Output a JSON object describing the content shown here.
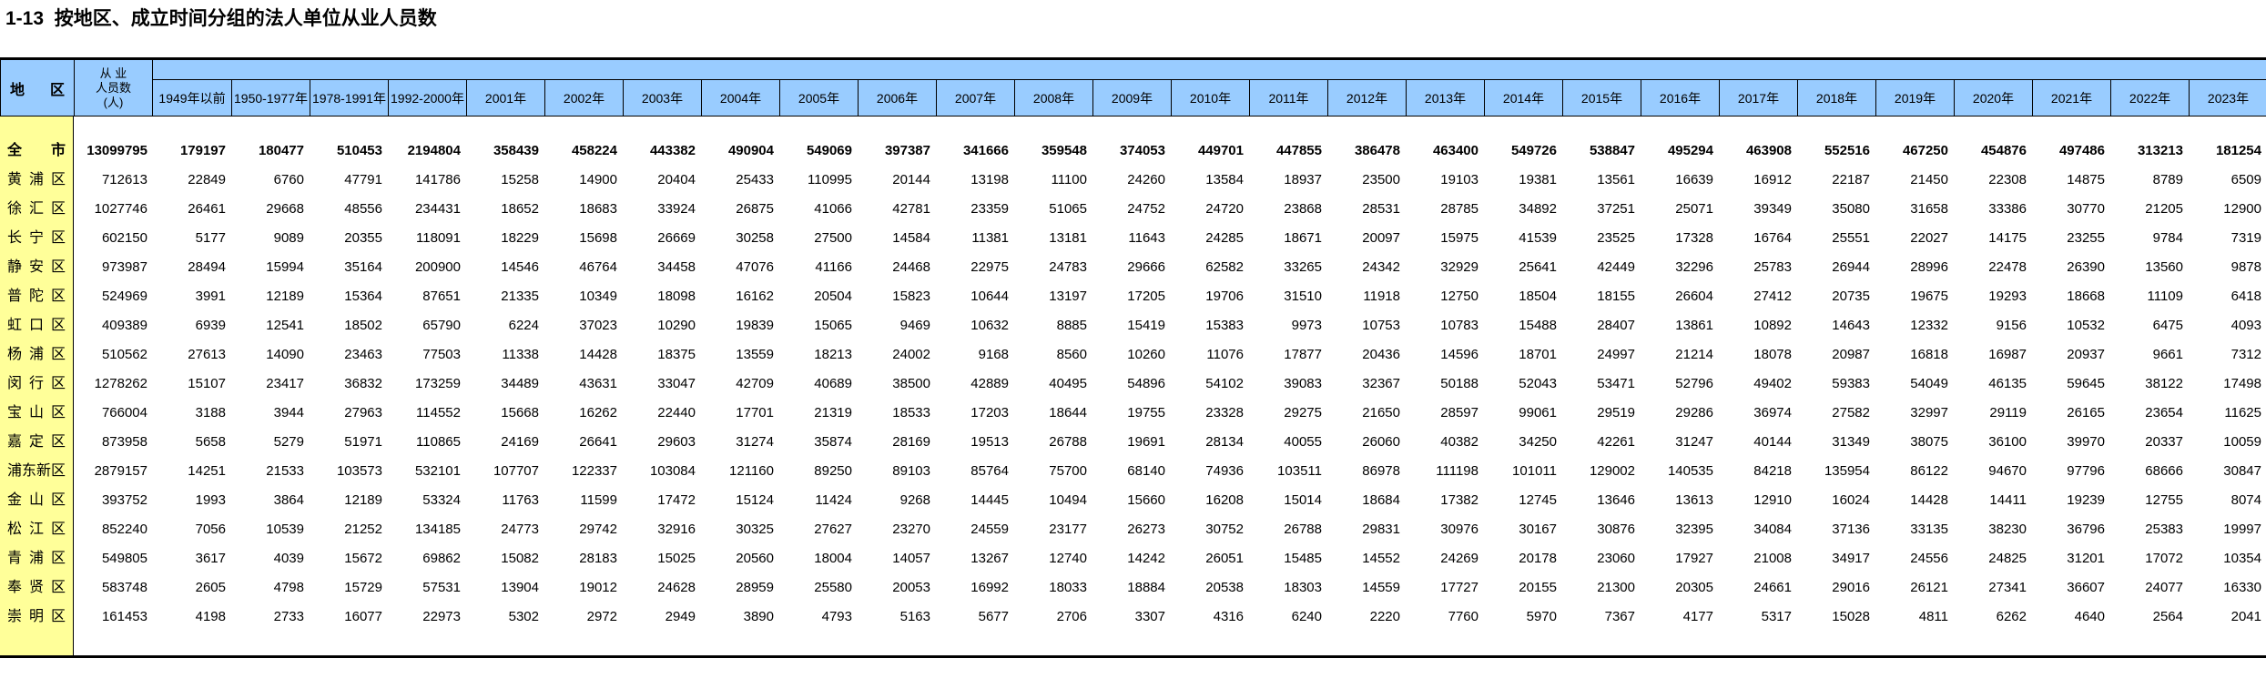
{
  "title": "1-13  按地区、成立时间分组的法人单位从业人员数",
  "colors": {
    "header_bg": "#99CCFF",
    "region_bg": "#FFFF99",
    "border": "#000000"
  },
  "table": {
    "region_header": "地区",
    "employees_header": "从 业\n人员数\n(人)",
    "year_columns": [
      "1949年以前",
      "1950-1977年",
      "1978-1991年",
      "1992-2000年",
      "2001年",
      "2002年",
      "2003年",
      "2004年",
      "2005年",
      "2006年",
      "2007年",
      "2008年",
      "2009年",
      "2010年",
      "2011年",
      "2012年",
      "2013年",
      "2014年",
      "2015年",
      "2016年",
      "2017年",
      "2018年",
      "2019年",
      "2020年",
      "2021年",
      "2022年",
      "2023年"
    ],
    "rows": [
      {
        "region": "全市",
        "bold": true,
        "values": [
          13099795,
          179197,
          180477,
          510453,
          2194804,
          358439,
          458224,
          443382,
          490904,
          549069,
          397387,
          341666,
          359548,
          374053,
          449701,
          447855,
          386478,
          463400,
          549726,
          538847,
          495294,
          463908,
          552516,
          467250,
          454876,
          497486,
          313213,
          181254
        ]
      },
      {
        "region": "黄浦区",
        "bold": false,
        "values": [
          712613,
          22849,
          6760,
          47791,
          141786,
          15258,
          14900,
          20404,
          25433,
          110995,
          20144,
          13198,
          11100,
          24260,
          13584,
          18937,
          23500,
          19103,
          19381,
          13561,
          16639,
          16912,
          22187,
          21450,
          22308,
          14875,
          8789,
          6509
        ]
      },
      {
        "region": "徐汇区",
        "bold": false,
        "values": [
          1027746,
          26461,
          29668,
          48556,
          234431,
          18652,
          18683,
          33924,
          26875,
          41066,
          42781,
          23359,
          51065,
          24752,
          24720,
          23868,
          28531,
          28785,
          34892,
          37251,
          25071,
          39349,
          35080,
          31658,
          33386,
          30770,
          21205,
          12900
        ]
      },
      {
        "region": "长宁区",
        "bold": false,
        "values": [
          602150,
          5177,
          9089,
          20355,
          118091,
          18229,
          15698,
          26669,
          30258,
          27500,
          14584,
          11381,
          13181,
          11643,
          24285,
          18671,
          20097,
          15975,
          41539,
          23525,
          17328,
          16764,
          25551,
          22027,
          14175,
          23255,
          9784,
          7319
        ]
      },
      {
        "region": "静安区",
        "bold": false,
        "values": [
          973987,
          28494,
          15994,
          35164,
          200900,
          14546,
          46764,
          34458,
          47076,
          41166,
          24468,
          22975,
          24783,
          29666,
          62582,
          33265,
          24342,
          32929,
          25641,
          42449,
          32296,
          25783,
          26944,
          28996,
          22478,
          26390,
          13560,
          9878
        ]
      },
      {
        "region": "普陀区",
        "bold": false,
        "values": [
          524969,
          3991,
          12189,
          15364,
          87651,
          21335,
          10349,
          18098,
          16162,
          20504,
          15823,
          10644,
          13197,
          17205,
          19706,
          31510,
          11918,
          12750,
          18504,
          18155,
          26604,
          27412,
          20735,
          19675,
          19293,
          18668,
          11109,
          6418
        ]
      },
      {
        "region": "虹口区",
        "bold": false,
        "values": [
          409389,
          6939,
          12541,
          18502,
          65790,
          6224,
          37023,
          10290,
          19839,
          15065,
          9469,
          10632,
          8885,
          15419,
          15383,
          9973,
          10753,
          10783,
          15488,
          28407,
          13861,
          10892,
          14643,
          12332,
          9156,
          10532,
          6475,
          4093
        ]
      },
      {
        "region": "杨浦区",
        "bold": false,
        "values": [
          510562,
          27613,
          14090,
          23463,
          77503,
          11338,
          14428,
          18375,
          13559,
          18213,
          24002,
          9168,
          8560,
          10260,
          11076,
          17877,
          20436,
          14596,
          18701,
          24997,
          21214,
          18078,
          20987,
          16818,
          16987,
          20937,
          9661,
          7312
        ]
      },
      {
        "region": "闵行区",
        "bold": false,
        "values": [
          1278262,
          15107,
          23417,
          36832,
          173259,
          34489,
          43631,
          33047,
          42709,
          40689,
          38500,
          42889,
          40495,
          54896,
          54102,
          39083,
          32367,
          50188,
          52043,
          53471,
          52796,
          49402,
          59383,
          54049,
          46135,
          59645,
          38122,
          17498
        ]
      },
      {
        "region": "宝山区",
        "bold": false,
        "values": [
          766004,
          3188,
          3944,
          27963,
          114552,
          15668,
          16262,
          22440,
          17701,
          21319,
          18533,
          17203,
          18644,
          19755,
          23328,
          29275,
          21650,
          28597,
          99061,
          29519,
          29286,
          36974,
          27582,
          32997,
          29119,
          26165,
          23654,
          11625
        ]
      },
      {
        "region": "嘉定区",
        "bold": false,
        "values": [
          873958,
          5658,
          5279,
          51971,
          110865,
          24169,
          26641,
          29603,
          31274,
          35874,
          28169,
          19513,
          26788,
          19691,
          28134,
          40055,
          26060,
          40382,
          34250,
          42261,
          31247,
          40144,
          31349,
          38075,
          36100,
          39970,
          20337,
          10059
        ]
      },
      {
        "region": "浦东新区",
        "bold": false,
        "values": [
          2879157,
          14251,
          21533,
          103573,
          532101,
          107707,
          122337,
          103084,
          121160,
          89250,
          89103,
          85764,
          75700,
          68140,
          74936,
          103511,
          86978,
          111198,
          101011,
          129002,
          140535,
          84218,
          135954,
          86122,
          94670,
          97796,
          68666,
          30847
        ]
      },
      {
        "region": "金山区",
        "bold": false,
        "values": [
          393752,
          1993,
          3864,
          12189,
          53324,
          11763,
          11599,
          17472,
          15124,
          11424,
          9268,
          14445,
          10494,
          15660,
          16208,
          15014,
          18684,
          17382,
          12745,
          13646,
          13613,
          12910,
          16024,
          14428,
          14411,
          19239,
          12755,
          8074
        ]
      },
      {
        "region": "松江区",
        "bold": false,
        "values": [
          852240,
          7056,
          10539,
          21252,
          134185,
          24773,
          29742,
          32916,
          30325,
          27627,
          23270,
          24559,
          23177,
          26273,
          30752,
          26788,
          29831,
          30976,
          30167,
          30876,
          32395,
          34084,
          37136,
          33135,
          38230,
          36796,
          25383,
          19997
        ]
      },
      {
        "region": "青浦区",
        "bold": false,
        "values": [
          549805,
          3617,
          4039,
          15672,
          69862,
          15082,
          28183,
          15025,
          20560,
          18004,
          14057,
          13267,
          12740,
          14242,
          26051,
          15485,
          14552,
          24269,
          20178,
          23060,
          17927,
          21008,
          34917,
          24556,
          24825,
          31201,
          17072,
          10354
        ]
      },
      {
        "region": "奉贤区",
        "bold": false,
        "values": [
          583748,
          2605,
          4798,
          15729,
          57531,
          13904,
          19012,
          24628,
          28959,
          25580,
          20053,
          16992,
          18033,
          18884,
          20538,
          18303,
          14559,
          17727,
          20155,
          21300,
          20305,
          24661,
          29016,
          26121,
          27341,
          36607,
          24077,
          16330
        ]
      },
      {
        "region": "崇明区",
        "bold": false,
        "values": [
          161453,
          4198,
          2733,
          16077,
          22973,
          5302,
          2972,
          2949,
          3890,
          4793,
          5163,
          5677,
          2706,
          3307,
          4316,
          6240,
          2220,
          7760,
          5970,
          7367,
          4177,
          5317,
          15028,
          4811,
          6262,
          4640,
          2564,
          2041
        ]
      }
    ]
  }
}
